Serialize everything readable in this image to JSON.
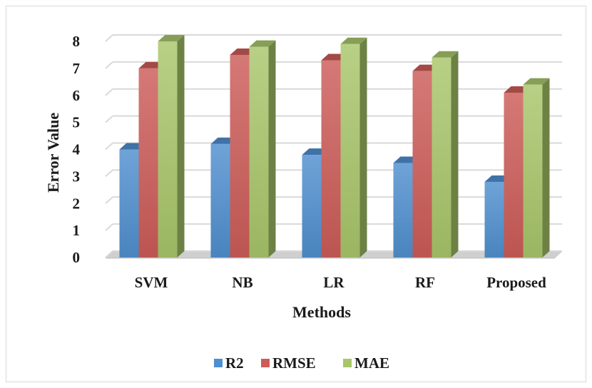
{
  "chart_data": {
    "type": "bar",
    "title": "",
    "xlabel": "Methods",
    "ylabel": "Error Value",
    "categories": [
      "SVM",
      "NB",
      "LR",
      "RF",
      "Proposed"
    ],
    "ylim": [
      0,
      8
    ],
    "yticks": [
      0,
      1,
      2,
      3,
      4,
      5,
      6,
      7,
      8
    ],
    "grid": true,
    "legend_position": "bottom",
    "style": "3d-clustered-column",
    "series": [
      {
        "name": "R2",
        "values": [
          4.0,
          4.2,
          3.8,
          3.5,
          2.8
        ],
        "color": "#4f8fcf"
      },
      {
        "name": "RMSE",
        "values": [
          7.0,
          7.5,
          7.3,
          6.9,
          6.1
        ],
        "color": "#cc5c58"
      },
      {
        "name": "MAE",
        "values": [
          8.0,
          7.8,
          7.9,
          7.4,
          6.4
        ],
        "color": "#a8c66a"
      }
    ]
  }
}
